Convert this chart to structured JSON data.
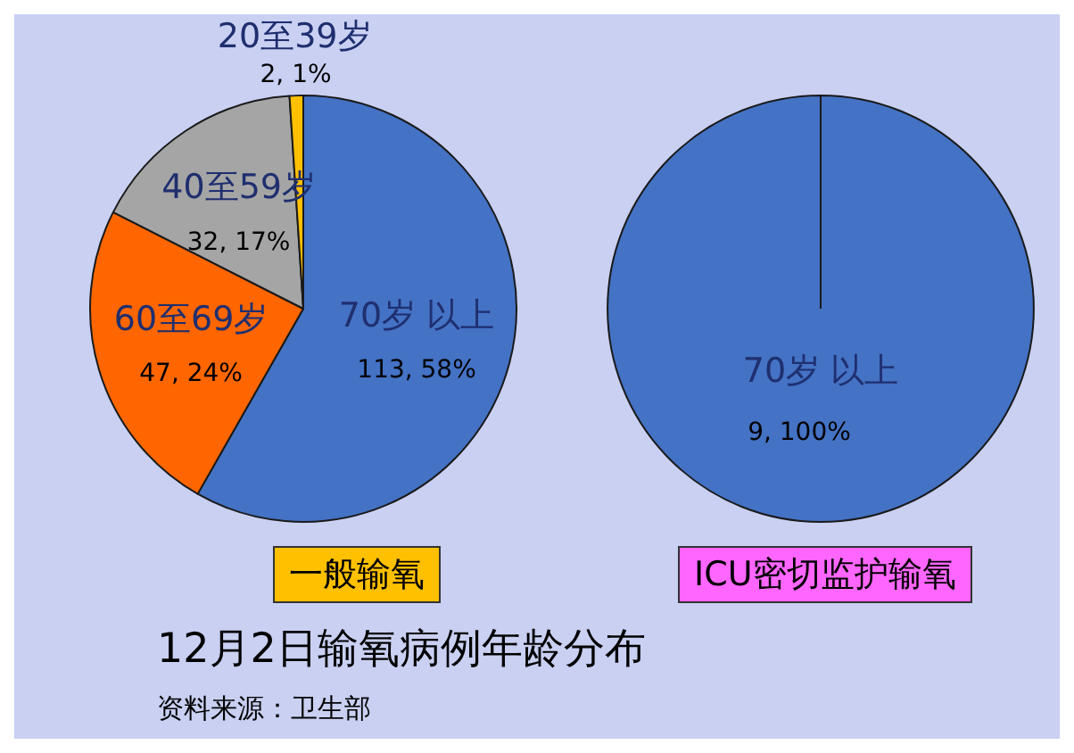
{
  "chart_data": [
    {
      "type": "pie",
      "title": "一般输氧",
      "categories": [
        "70岁 以上",
        "60至69岁",
        "40至59岁",
        "20至39岁"
      ],
      "values": [
        113,
        47,
        32,
        2
      ],
      "colors": [
        "#4472c4",
        "#ff6600",
        "#a5a5a5",
        "#ffc000"
      ],
      "value_labels": [
        "113, 58%",
        "47, 24%",
        "32, 17%",
        "2, 1%"
      ],
      "annotations": [
        "12月2日输氧病例年龄分布",
        "资料来源：卫生部"
      ]
    },
    {
      "type": "pie",
      "title": "ICU密切监护输氧",
      "categories": [
        "70岁 以上"
      ],
      "values": [
        9
      ],
      "colors": [
        "#4472c4"
      ],
      "value_labels": [
        "9, 100%"
      ]
    }
  ]
}
